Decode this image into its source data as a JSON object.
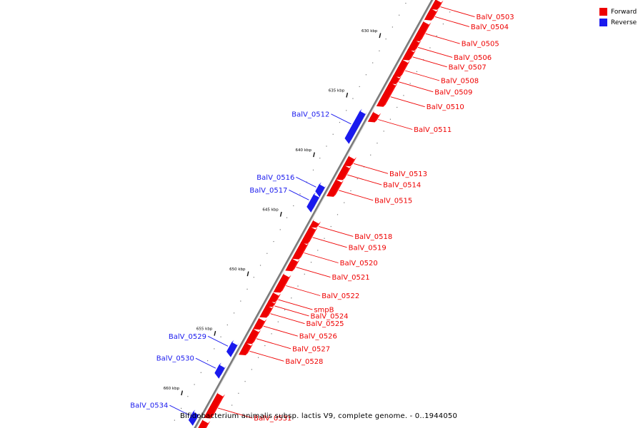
{
  "legend": {
    "forward_label": "Forward",
    "reverse_label": "Reverse",
    "forward_color": "#ee0000",
    "reverse_color": "#1a1aee"
  },
  "caption": "Bifidobacterium animalis subsp. lactis V9, complete genome. - 0..1944050",
  "scale": {
    "kbp_start": 625.5,
    "kbp_end": 662.5,
    "ticks": [
      {
        "kbp": 630,
        "label": "630 kbp"
      },
      {
        "kbp": 635,
        "label": "635 kbp"
      },
      {
        "kbp": 640,
        "label": "640 kbp"
      },
      {
        "kbp": 645,
        "label": "645 kbp"
      },
      {
        "kbp": 650,
        "label": "650 kbp"
      },
      {
        "kbp": 655,
        "label": "655 kbp"
      },
      {
        "kbp": 660,
        "label": "660 kbp"
      }
    ]
  },
  "genes": [
    {
      "name": "BalV_0503",
      "strand": "forward",
      "start": 625.7,
      "end": 626.3
    },
    {
      "name": "BalV_0504",
      "strand": "forward",
      "start": 626.45,
      "end": 627.2
    },
    {
      "name": "BalV_0505",
      "strand": "forward",
      "start": 627.55,
      "end": 628.95
    },
    {
      "name": "BalV_0506",
      "strand": "forward",
      "start": 629.05,
      "end": 629.75
    },
    {
      "name": "BalV_0507",
      "strand": "forward",
      "start": 629.85,
      "end": 630.55
    },
    {
      "name": "BalV_0508",
      "strand": "forward",
      "start": 630.75,
      "end": 631.95
    },
    {
      "name": "BalV_0509",
      "strand": "forward",
      "start": 632.05,
      "end": 632.55
    },
    {
      "name": "BalV_0510",
      "strand": "forward",
      "start": 632.65,
      "end": 634.45
    },
    {
      "name": "BalV_0511",
      "strand": "forward",
      "start": 635.15,
      "end": 635.75
    },
    {
      "name": "BalV_0512",
      "strand": "reverse",
      "start": 635.55,
      "end": 637.85
    },
    {
      "name": "BalV_0513",
      "strand": "forward",
      "start": 638.85,
      "end": 639.45
    },
    {
      "name": "BalV_0514",
      "strand": "forward",
      "start": 639.6,
      "end": 640.6
    },
    {
      "name": "BalV_0515",
      "strand": "forward",
      "start": 640.8,
      "end": 642.0
    },
    {
      "name": "BalV_0516",
      "strand": "reverse",
      "start": 641.7,
      "end": 642.3
    },
    {
      "name": "BalV_0517",
      "strand": "reverse",
      "start": 642.55,
      "end": 643.6
    },
    {
      "name": "BalV_0518",
      "strand": "forward",
      "start": 644.25,
      "end": 644.6
    },
    {
      "name": "BalV_0519",
      "strand": "forward",
      "start": 644.75,
      "end": 645.95
    },
    {
      "name": "BalV_0520",
      "strand": "forward",
      "start": 646.05,
      "end": 647.25
    },
    {
      "name": "BalV_0521",
      "strand": "forward",
      "start": 647.45,
      "end": 648.25
    },
    {
      "name": "BalV_0522",
      "strand": "forward",
      "start": 648.75,
      "end": 650.05
    },
    {
      "name": "smpB",
      "strand": "forward",
      "start": 650.3,
      "end": 650.85
    },
    {
      "name": "BalV_0524",
      "strand": "forward",
      "start": 650.95,
      "end": 651.25
    },
    {
      "name": "BalV_0525",
      "strand": "forward",
      "start": 651.35,
      "end": 652.15
    },
    {
      "name": "BalV_0526",
      "strand": "forward",
      "start": 652.45,
      "end": 653.15
    },
    {
      "name": "BalV_0527",
      "strand": "forward",
      "start": 653.35,
      "end": 654.35
    },
    {
      "name": "BalV_0528",
      "strand": "forward",
      "start": 654.5,
      "end": 655.3
    },
    {
      "name": "BalV_0529",
      "strand": "reverse",
      "start": 654.95,
      "end": 655.75
    },
    {
      "name": "BalV_0530",
      "strand": "reverse",
      "start": 656.85,
      "end": 657.55
    },
    {
      "name": "BalV_0531",
      "strand": "forward",
      "start": 658.75,
      "end": 660.6
    },
    {
      "name": "BalV_0534",
      "strand": "reverse",
      "start": 660.8,
      "end": 661.5
    },
    {
      "name": "",
      "strand": "forward",
      "start": 661.0,
      "end": 661.55
    }
  ]
}
